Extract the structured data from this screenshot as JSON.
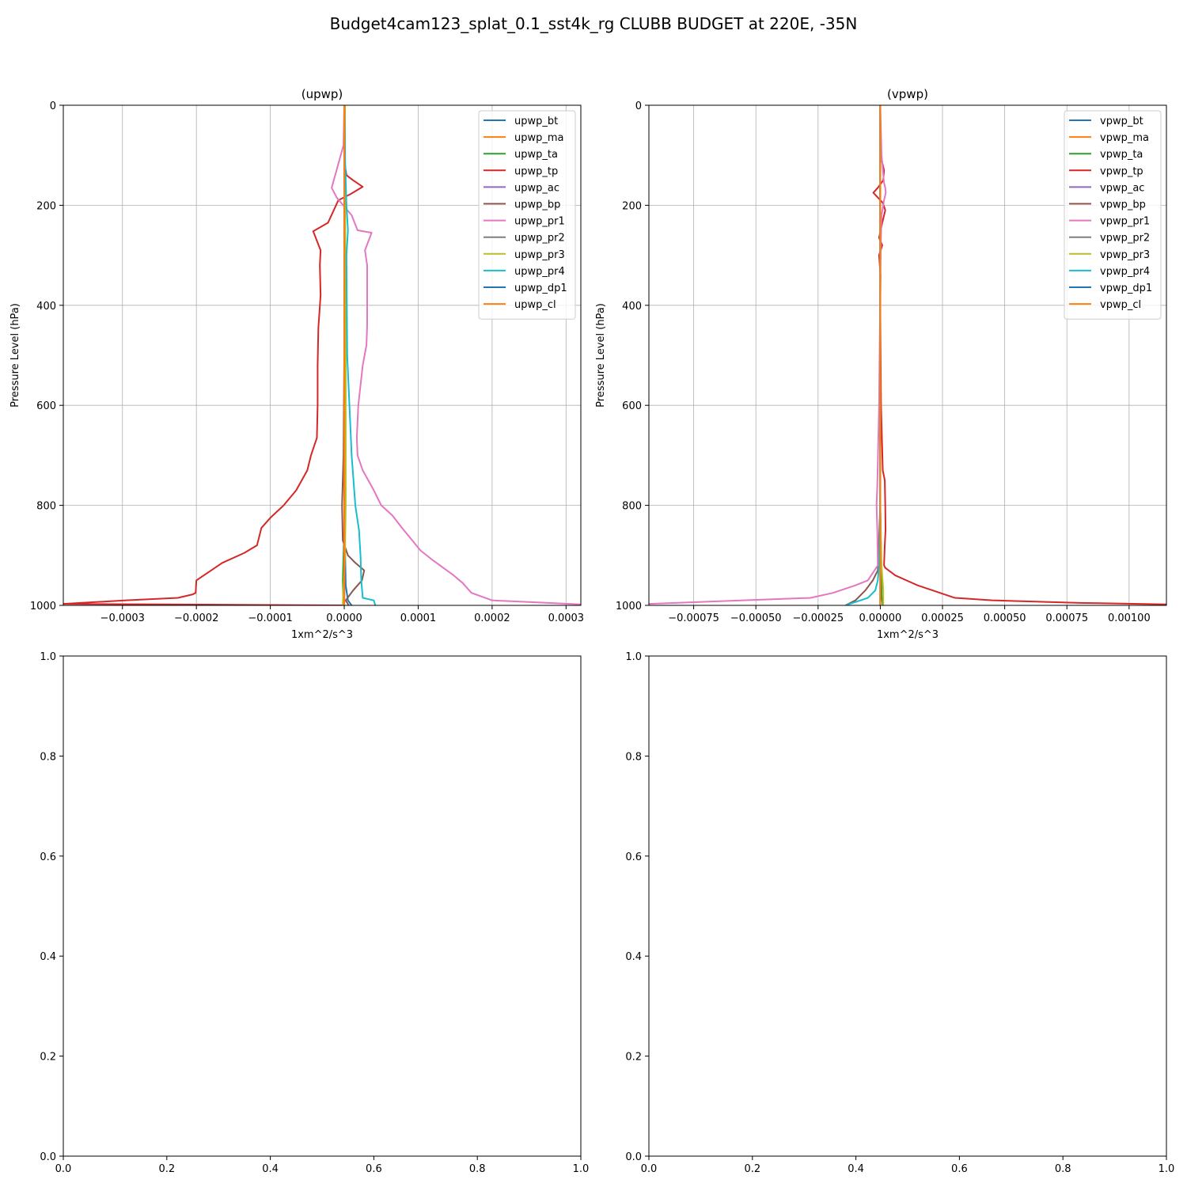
{
  "figure": {
    "suptitle": "Budget4cam123_splat_0.1_sst4k_rg CLUBB BUDGET at 220E, -35N"
  },
  "chart_data": [
    {
      "type": "line",
      "title": "(upwp)",
      "xlabel": "1xm^2/s^3",
      "ylabel": "Pressure Level (hPa)",
      "xlim": [
        -0.00038,
        0.00032
      ],
      "ylim": [
        1000,
        0
      ],
      "xticks": [
        -0.0003,
        -0.0002,
        -0.0001,
        0.0,
        0.0001,
        0.0002,
        0.0003
      ],
      "xtick_labels": [
        "−0.0003",
        "−0.0002",
        "−0.0001",
        "0.0000",
        "0.0001",
        "0.0002",
        "0.0003"
      ],
      "yticks": [
        0,
        200,
        400,
        600,
        800,
        1000
      ],
      "ytick_labels": [
        "0",
        "200",
        "400",
        "600",
        "800",
        "1000"
      ],
      "grid": true,
      "legend_position": "upper right",
      "series": [
        {
          "name": "upwp_bt",
          "color": "#1f77b4",
          "x": [
            0,
            0,
            2e-06,
            5e-06,
            1e-05
          ],
          "y": [
            0,
            800,
            960,
            990,
            1000
          ]
        },
        {
          "name": "upwp_ma",
          "color": "#ff7f0e",
          "x": [
            0,
            0,
            0,
            0
          ],
          "y": [
            0,
            800,
            990,
            1000
          ]
        },
        {
          "name": "upwp_ta",
          "color": "#2ca02c",
          "x": [
            1e-06,
            1e-06,
            0,
            1e-06,
            1e-06,
            -2e-06,
            -1e-06
          ],
          "y": [
            0,
            100,
            200,
            500,
            800,
            950,
            1000
          ]
        },
        {
          "name": "upwp_tp",
          "color": "#d62728",
          "x": [
            1e-06,
            1e-06,
            1e-06,
            3e-06,
            1.2e-05,
            2.5e-05,
            8e-06,
            -8e-06,
            -2.2e-05,
            -4.2e-05,
            -3.2e-05,
            -3.3e-05,
            -3.2e-05,
            -3.5e-05,
            -3.6e-05,
            -3.6e-05,
            -3.7e-05,
            -4.5e-05,
            -5e-05,
            -6.5e-05,
            -8.2e-05,
            -0.0001,
            -0.000112,
            -0.000118,
            -0.000135,
            -0.000165,
            -0.000185,
            -0.0002,
            -0.000201,
            -0.000205,
            -0.000225,
            -0.000295,
            -0.00038,
            0
          ],
          "y": [
            0,
            80,
            120,
            140,
            150,
            163,
            178,
            190,
            235,
            252,
            290,
            320,
            380,
            445,
            520,
            600,
            665,
            700,
            730,
            770,
            800,
            825,
            845,
            880,
            895,
            915,
            935,
            950,
            975,
            978,
            985,
            990,
            997,
            1000
          ]
        },
        {
          "name": "upwp_ac",
          "color": "#9467bd",
          "x": [
            0,
            0,
            0
          ],
          "y": [
            0,
            800,
            1000
          ]
        },
        {
          "name": "upwp_bp",
          "color": "#8c564b",
          "x": [
            0,
            0,
            -1e-06,
            -3e-06,
            -2e-06,
            5e-06,
            1.5e-05,
            2.7e-05,
            2.4e-05,
            1.2e-05,
            2e-06,
            6e-06
          ],
          "y": [
            0,
            500,
            700,
            800,
            870,
            900,
            915,
            930,
            950,
            970,
            990,
            1000
          ]
        },
        {
          "name": "upwp_pr1",
          "color": "#e377c2",
          "x": [
            0,
            -1e-06,
            -1.7e-05,
            -1e-05,
            1e-05,
            1.8e-05,
            3.7e-05,
            2.8e-05,
            3.1e-05,
            3.1e-05,
            3.1e-05,
            3e-05,
            2.5e-05,
            1.9e-05,
            1.7e-05,
            1.8e-05,
            2.5e-05,
            4e-05,
            5e-05,
            6.5e-05,
            7.8e-05,
            9.2e-05,
            0.000103,
            0.00012,
            0.000148,
            0.00016,
            0.000172,
            0.0002,
            0.00032
          ],
          "y": [
            0,
            80,
            165,
            185,
            220,
            250,
            255,
            290,
            320,
            380,
            440,
            480,
            520,
            600,
            665,
            700,
            730,
            770,
            800,
            820,
            845,
            870,
            890,
            910,
            940,
            955,
            975,
            990,
            998
          ]
        },
        {
          "name": "upwp_pr2",
          "color": "#7f7f7f",
          "x": [
            0,
            0,
            1e-06,
            0
          ],
          "y": [
            0,
            500,
            900,
            1000
          ]
        },
        {
          "name": "upwp_pr3",
          "color": "#bcbd22",
          "x": [
            1e-06,
            1e-06,
            2e-06,
            2e-06,
            1e-06,
            -1e-06,
            -2e-06
          ],
          "y": [
            0,
            100,
            500,
            800,
            900,
            960,
            1000
          ]
        },
        {
          "name": "upwp_pr4",
          "color": "#17becf",
          "x": [
            0,
            1e-06,
            3e-06,
            5e-06,
            3e-06,
            4e-06,
            1e-05,
            1.5e-05,
            2e-05,
            2.2e-05,
            2.3e-05,
            2.5e-05,
            4e-05,
            4.2e-05
          ],
          "y": [
            0,
            100,
            200,
            250,
            300,
            500,
            700,
            800,
            850,
            900,
            950,
            985,
            990,
            1000
          ]
        },
        {
          "name": "upwp_dp1",
          "color": "#1f77b4",
          "x": [
            0,
            0,
            0
          ],
          "y": [
            0,
            800,
            1000
          ]
        },
        {
          "name": "upwp_cl",
          "color": "#ff7f0e",
          "x": [
            0,
            0,
            0
          ],
          "y": [
            0,
            800,
            1000
          ]
        }
      ]
    },
    {
      "type": "line",
      "title": "(vpwp)",
      "xlabel": "1xm^2/s^3",
      "ylabel": "Pressure Level (hPa)",
      "xlim": [
        -0.00093,
        0.00115
      ],
      "ylim": [
        1000,
        0
      ],
      "xticks": [
        -0.00075,
        -0.0005,
        -0.00025,
        0.0,
        0.00025,
        0.0005,
        0.00075,
        0.001
      ],
      "xtick_labels": [
        "−0.00075",
        "−0.00050",
        "−0.00025",
        "0.00000",
        "0.00025",
        "0.00050",
        "0.00075",
        "0.00100"
      ],
      "yticks": [
        0,
        200,
        400,
        600,
        800,
        1000
      ],
      "ytick_labels": [
        "0",
        "200",
        "400",
        "600",
        "800",
        "1000"
      ],
      "grid": true,
      "legend_position": "upper right",
      "series": [
        {
          "name": "vpwp_bt",
          "color": "#1f77b4",
          "x": [
            0,
            0,
            5e-06,
            1e-05
          ],
          "y": [
            0,
            800,
            980,
            1000
          ]
        },
        {
          "name": "vpwp_ma",
          "color": "#ff7f0e",
          "x": [
            0,
            0,
            0
          ],
          "y": [
            0,
            800,
            1000
          ]
        },
        {
          "name": "vpwp_ta",
          "color": "#2ca02c",
          "x": [
            0,
            0,
            5e-06,
            1e-05
          ],
          "y": [
            0,
            800,
            980,
            1000
          ]
        },
        {
          "name": "vpwp_tp",
          "color": "#d62728",
          "x": [
            0,
            0,
            2e-06,
            8e-06,
            1.5e-05,
            1.2e-05,
            -1e-05,
            -2.8e-05,
            1e-05,
            2e-05,
            8e-06,
            -5e-06,
            8e-06,
            -5e-06,
            1e-06,
            0,
            3e-06,
            1e-05,
            1.8e-05,
            2e-05,
            2.1e-05,
            1.8e-05,
            1.5e-05,
            2e-05,
            6e-05,
            0.00015,
            0.0003,
            0.00045,
            0.0008,
            0.00115
          ],
          "y": [
            0,
            80,
            100,
            115,
            130,
            150,
            165,
            175,
            195,
            210,
            235,
            265,
            280,
            300,
            340,
            400,
            600,
            730,
            750,
            800,
            850,
            880,
            920,
            925,
            940,
            960,
            985,
            990,
            995,
            998
          ]
        },
        {
          "name": "vpwp_ac",
          "color": "#9467bd",
          "x": [
            0,
            0,
            0
          ],
          "y": [
            0,
            800,
            1000
          ]
        },
        {
          "name": "vpwp_bp",
          "color": "#8c564b",
          "x": [
            0,
            0,
            -1e-05,
            -3e-05,
            -6e-05,
            -0.0001,
            -0.00014
          ],
          "y": [
            0,
            800,
            930,
            950,
            970,
            990,
            1000
          ]
        },
        {
          "name": "vpwp_pr1",
          "color": "#e377c2",
          "x": [
            0,
            5e-06,
            1.5e-05,
            2e-05,
            2.2e-05,
            1.5e-05,
            1.2e-05,
            5e-06,
            2e-06,
            -5e-06,
            -1.2e-05,
            -1.5e-05,
            -1.2e-05,
            -1e-05,
            -5e-05,
            -0.0001,
            -0.00019,
            -0.00028,
            -0.00055,
            -0.00093
          ],
          "y": [
            0,
            100,
            155,
            165,
            175,
            190,
            200,
            220,
            280,
            600,
            760,
            800,
            850,
            920,
            950,
            960,
            975,
            985,
            990,
            997
          ]
        },
        {
          "name": "vpwp_pr2",
          "color": "#7f7f7f",
          "x": [
            0,
            0,
            0
          ],
          "y": [
            0,
            800,
            1000
          ]
        },
        {
          "name": "vpwp_pr3",
          "color": "#bcbd22",
          "x": [
            0,
            0,
            5e-06,
            1.2e-05,
            1.2e-05
          ],
          "y": [
            0,
            800,
            920,
            970,
            1000
          ]
        },
        {
          "name": "vpwp_pr4",
          "color": "#17becf",
          "x": [
            0,
            0,
            -5e-06,
            -1e-05,
            -2e-05,
            -5e-05,
            -0.00014
          ],
          "y": [
            0,
            800,
            920,
            950,
            970,
            985,
            1000
          ]
        },
        {
          "name": "vpwp_dp1",
          "color": "#1f77b4",
          "x": [
            0,
            0,
            0
          ],
          "y": [
            0,
            800,
            1000
          ]
        },
        {
          "name": "vpwp_cl",
          "color": "#ff7f0e",
          "x": [
            0,
            0,
            0
          ],
          "y": [
            0,
            800,
            1000
          ]
        }
      ]
    },
    {
      "type": "line",
      "xlim": [
        0,
        1
      ],
      "ylim": [
        0,
        1
      ],
      "xtick_labels": [
        "0.0",
        "0.2",
        "0.4",
        "0.6",
        "0.8",
        "1.0"
      ],
      "ytick_labels": [
        "0.0",
        "0.2",
        "0.4",
        "0.6",
        "0.8",
        "1.0"
      ],
      "grid": false,
      "series": []
    },
    {
      "type": "line",
      "xlim": [
        0,
        1
      ],
      "ylim": [
        0,
        1
      ],
      "xtick_labels": [
        "0.0",
        "0.2",
        "0.4",
        "0.6",
        "0.8",
        "1.0"
      ],
      "ytick_labels": [
        "0.0",
        "0.2",
        "0.4",
        "0.6",
        "0.8",
        "1.0"
      ],
      "grid": false,
      "series": []
    }
  ]
}
